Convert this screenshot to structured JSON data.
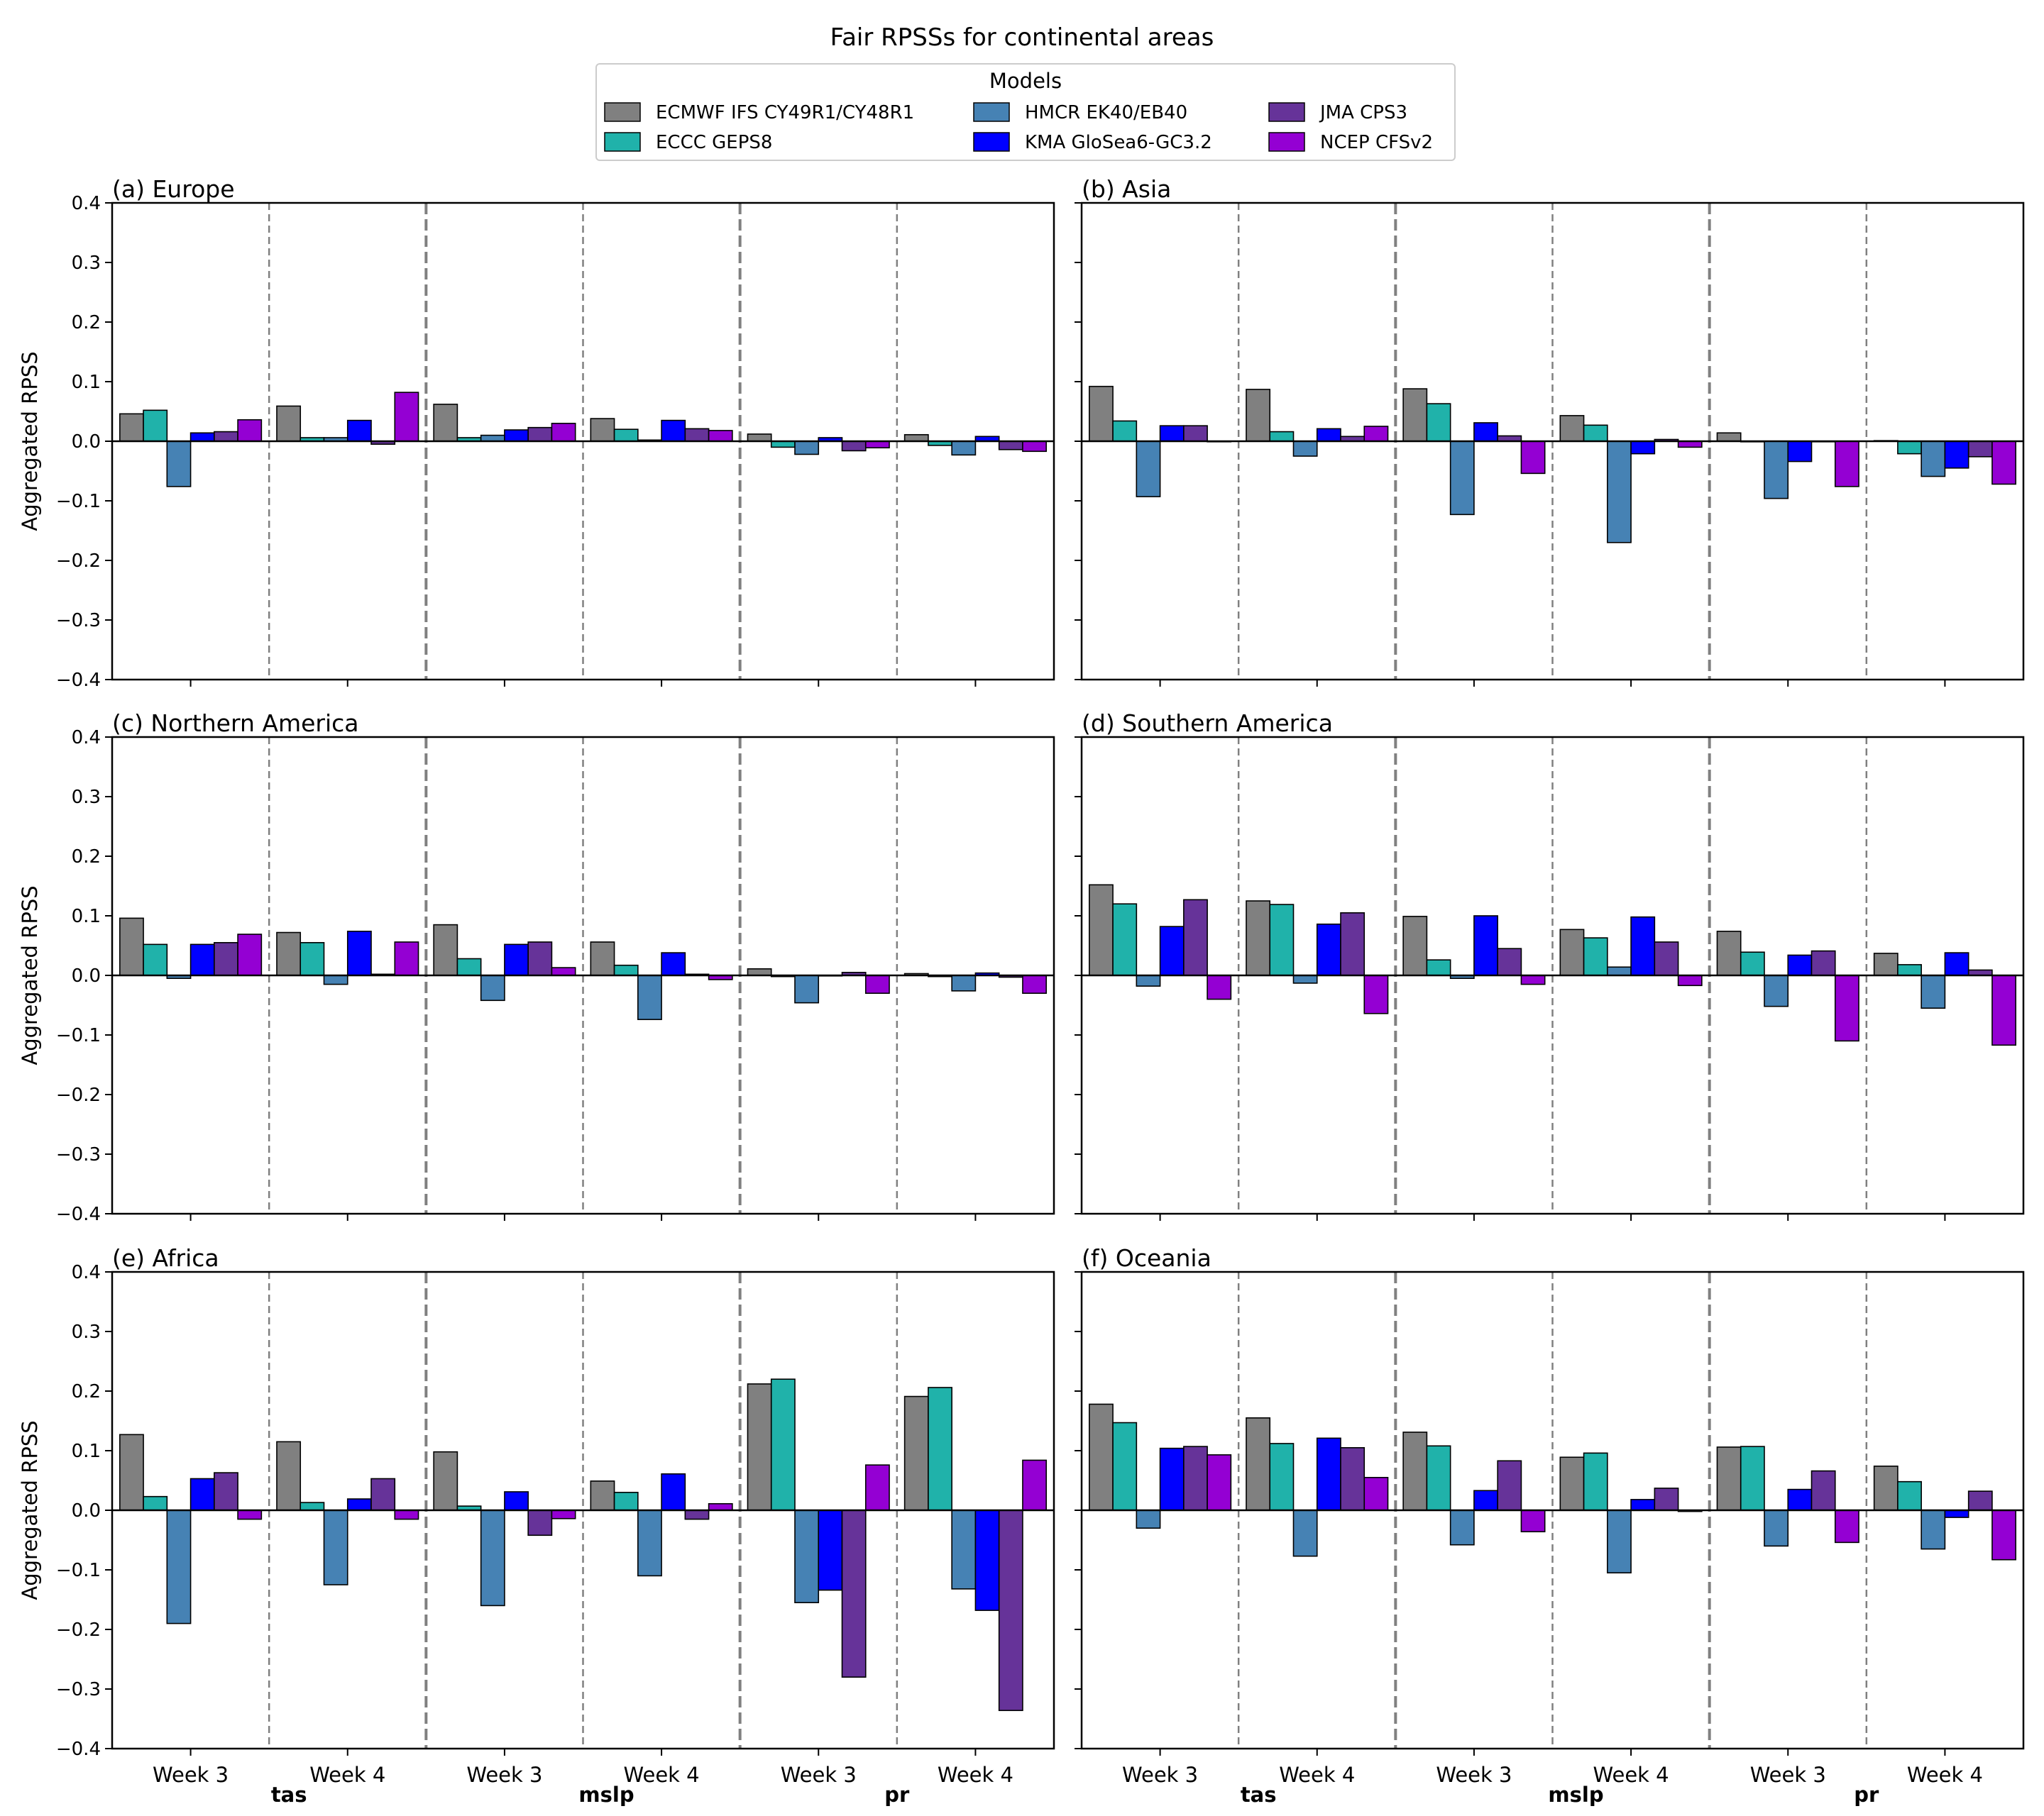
{
  "title": "Fair RPSSs for continental areas",
  "legend": {
    "title": "Models",
    "entries": [
      {
        "label": "ECMWF IFS CY49R1/CY48R1",
        "color": "#808080"
      },
      {
        "label": "ECCC GEPS8",
        "color": "#20b2aa"
      },
      {
        "label": "HMCR EK40/EB40",
        "color": "#4682b4"
      },
      {
        "label": "KMA GloSea6-GC3.2",
        "color": "#0000ff"
      },
      {
        "label": "JMA CPS3",
        "color": "#663399"
      },
      {
        "label": "NCEP CFSv2",
        "color": "#9400d3"
      }
    ]
  },
  "chart_data": {
    "type": "bar",
    "ylabel": "Aggregated RPSS",
    "ylim": [
      -0.4,
      0.4
    ],
    "yticks": [
      "0.4",
      "0.3",
      "0.2",
      "0.1",
      "0.0",
      "−0.1",
      "−0.2",
      "−0.3",
      "−0.4"
    ],
    "categories": [
      "Week 3",
      "Week 4",
      "Week 3",
      "Week 4",
      "Week 3",
      "Week 4"
    ],
    "variables": [
      "tas",
      "mslp",
      "pr"
    ],
    "series_names": [
      "ECMWF IFS CY49R1/CY48R1",
      "ECCC GEPS8",
      "HMCR EK40/EB40",
      "KMA GloSea6-GC3.2",
      "JMA CPS3",
      "NCEP CFSv2"
    ],
    "panels": [
      {
        "title": "(a) Europe",
        "values": [
          [
            0.046,
            0.052,
            -0.076,
            0.014,
            0.016,
            0.036
          ],
          [
            0.059,
            0.006,
            0.006,
            0.035,
            -0.005,
            0.082
          ],
          [
            0.062,
            0.006,
            0.01,
            0.019,
            0.023,
            0.03
          ],
          [
            0.038,
            0.02,
            0.002,
            0.035,
            0.021,
            0.018
          ],
          [
            0.012,
            -0.01,
            -0.022,
            0.006,
            -0.016,
            -0.011
          ],
          [
            0.011,
            -0.007,
            -0.023,
            0.008,
            -0.014,
            -0.017
          ]
        ]
      },
      {
        "title": "(b) Asia",
        "values": [
          [
            0.092,
            0.034,
            -0.093,
            0.026,
            0.026,
            0.0
          ],
          [
            0.087,
            0.016,
            -0.025,
            0.021,
            0.008,
            0.025
          ],
          [
            0.088,
            0.063,
            -0.123,
            0.031,
            0.009,
            -0.054
          ],
          [
            0.043,
            0.027,
            -0.17,
            -0.021,
            0.003,
            -0.01
          ],
          [
            0.014,
            -0.001,
            -0.096,
            -0.034,
            0.0,
            -0.076
          ],
          [
            0.001,
            -0.021,
            -0.059,
            -0.045,
            -0.026,
            -0.072
          ]
        ]
      },
      {
        "title": "(c) Northern America",
        "values": [
          [
            0.096,
            0.052,
            -0.005,
            0.052,
            0.055,
            0.069
          ],
          [
            0.072,
            0.055,
            -0.015,
            0.074,
            0.002,
            0.056
          ],
          [
            0.085,
            0.028,
            -0.042,
            0.052,
            0.056,
            0.013
          ],
          [
            0.056,
            0.017,
            -0.074,
            0.038,
            0.002,
            -0.007
          ],
          [
            0.011,
            -0.002,
            -0.046,
            0.0,
            0.005,
            -0.03
          ],
          [
            0.003,
            -0.002,
            -0.026,
            0.004,
            -0.003,
            -0.03
          ]
        ]
      },
      {
        "title": "(d) Southern America",
        "values": [
          [
            0.152,
            0.12,
            -0.018,
            0.082,
            0.127,
            -0.04
          ],
          [
            0.125,
            0.119,
            -0.013,
            0.086,
            0.105,
            -0.064
          ],
          [
            0.099,
            0.026,
            -0.005,
            0.1,
            0.045,
            -0.015
          ],
          [
            0.077,
            0.063,
            0.014,
            0.098,
            0.056,
            -0.017
          ],
          [
            0.074,
            0.039,
            -0.052,
            0.034,
            0.041,
            -0.11
          ],
          [
            0.037,
            0.018,
            -0.055,
            0.038,
            0.009,
            -0.117
          ]
        ]
      },
      {
        "title": "(e) Africa",
        "values": [
          [
            0.127,
            0.023,
            -0.19,
            0.053,
            0.063,
            -0.015
          ],
          [
            0.115,
            0.013,
            -0.125,
            0.019,
            0.053,
            -0.015
          ],
          [
            0.098,
            0.007,
            -0.16,
            0.031,
            -0.042,
            -0.014
          ],
          [
            0.049,
            0.03,
            -0.11,
            0.061,
            -0.015,
            0.011
          ],
          [
            0.212,
            0.22,
            -0.155,
            -0.134,
            -0.28,
            0.076
          ],
          [
            0.191,
            0.206,
            -0.132,
            -0.168,
            -0.336,
            0.084
          ]
        ]
      },
      {
        "title": "(f) Oceania",
        "values": [
          [
            0.178,
            0.147,
            -0.03,
            0.104,
            0.107,
            0.093
          ],
          [
            0.155,
            0.112,
            -0.077,
            0.121,
            0.105,
            0.055
          ],
          [
            0.131,
            0.108,
            -0.058,
            0.033,
            0.083,
            -0.036
          ],
          [
            0.089,
            0.096,
            -0.105,
            0.018,
            0.037,
            -0.002
          ],
          [
            0.106,
            0.107,
            -0.06,
            0.035,
            0.066,
            -0.054
          ],
          [
            0.074,
            0.048,
            -0.065,
            -0.012,
            0.032,
            -0.083
          ]
        ]
      }
    ]
  }
}
